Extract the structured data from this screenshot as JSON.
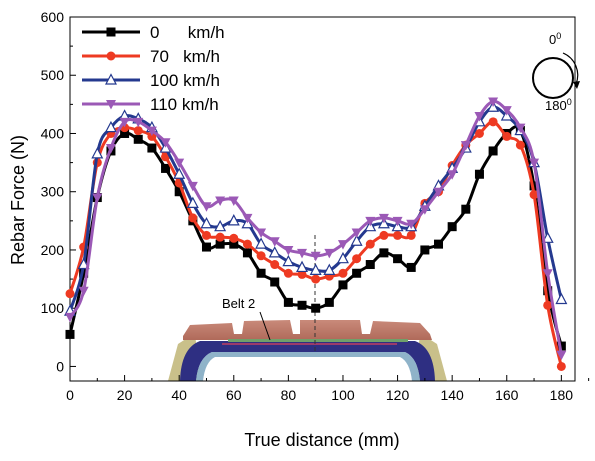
{
  "chart_data": {
    "type": "line",
    "title": "",
    "xlabel": "True distance (mm)",
    "ylabel": "Rebar Force (N)",
    "xlim": [
      0,
      185
    ],
    "ylim": [
      -25,
      600
    ],
    "xticks": [
      "0",
      "20",
      "40",
      "60",
      "80",
      "100",
      "120",
      "140",
      "160",
      "180"
    ],
    "yticks": [
      "0",
      "100",
      "200",
      "300",
      "400",
      "500",
      "600"
    ],
    "grid": false,
    "legend_position": "top-left",
    "series": [
      {
        "name": "0      km/h",
        "color": "#000000",
        "marker": "square",
        "x": [
          0,
          5,
          10,
          15,
          20,
          25,
          30,
          35,
          40,
          45,
          50,
          55,
          60,
          65,
          70,
          75,
          80,
          85,
          90,
          95,
          100,
          105,
          110,
          115,
          120,
          125,
          130,
          135,
          140,
          145,
          150,
          155,
          160,
          165,
          170,
          175,
          180
        ],
        "y": [
          55,
          160,
          290,
          370,
          400,
          390,
          375,
          340,
          300,
          250,
          205,
          210,
          210,
          195,
          160,
          145,
          110,
          105,
          100,
          110,
          140,
          160,
          175,
          195,
          185,
          170,
          200,
          210,
          240,
          270,
          330,
          370,
          400,
          405,
          310,
          130,
          35
        ]
      },
      {
        "name": "70   km/h",
        "color": "#ee3a22",
        "marker": "circle",
        "x": [
          0,
          5,
          10,
          15,
          20,
          25,
          30,
          35,
          40,
          45,
          50,
          55,
          60,
          65,
          70,
          75,
          80,
          85,
          90,
          95,
          100,
          105,
          110,
          115,
          120,
          125,
          130,
          135,
          140,
          145,
          150,
          155,
          160,
          165,
          170,
          175,
          180
        ],
        "y": [
          125,
          205,
          350,
          400,
          410,
          405,
          395,
          360,
          315,
          255,
          225,
          222,
          220,
          210,
          190,
          175,
          160,
          158,
          150,
          155,
          160,
          185,
          210,
          225,
          225,
          225,
          280,
          300,
          345,
          380,
          400,
          420,
          395,
          380,
          295,
          105,
          0
        ]
      },
      {
        "name": "100 km/h",
        "color": "#24398f",
        "marker": "triangle-up",
        "x": [
          0,
          5,
          10,
          15,
          20,
          25,
          30,
          35,
          40,
          45,
          50,
          55,
          60,
          65,
          70,
          75,
          80,
          85,
          90,
          95,
          100,
          105,
          110,
          115,
          120,
          125,
          130,
          135,
          140,
          145,
          150,
          155,
          160,
          165,
          170,
          175,
          180
        ],
        "y": [
          95,
          175,
          365,
          410,
          430,
          425,
          410,
          375,
          330,
          280,
          245,
          240,
          250,
          245,
          210,
          195,
          180,
          170,
          165,
          165,
          185,
          215,
          240,
          245,
          240,
          240,
          275,
          310,
          340,
          375,
          420,
          445,
          430,
          405,
          350,
          220,
          115
        ]
      },
      {
        "name": "110 km/h",
        "color": "#9b59b6",
        "marker": "triangle-down",
        "x": [
          0,
          5,
          10,
          15,
          20,
          25,
          30,
          35,
          40,
          45,
          50,
          55,
          60,
          65,
          70,
          75,
          80,
          85,
          90,
          95,
          100,
          105,
          110,
          115,
          120,
          125,
          130,
          135,
          140,
          145,
          150,
          155,
          160,
          165,
          170,
          175,
          180
        ],
        "y": [
          85,
          130,
          290,
          375,
          420,
          420,
          405,
          385,
          350,
          310,
          275,
          285,
          285,
          255,
          230,
          215,
          200,
          195,
          190,
          195,
          210,
          230,
          250,
          255,
          250,
          245,
          270,
          300,
          330,
          380,
          430,
          455,
          440,
          410,
          350,
          160,
          20
        ]
      }
    ],
    "annotations": [
      {
        "text": "Belt 2",
        "x": 77,
        "y": 112
      },
      {
        "text": "0",
        "superscript": "0",
        "role": "angle-top"
      },
      {
        "text": "180",
        "superscript": "0",
        "role": "angle-bottom"
      }
    ]
  }
}
